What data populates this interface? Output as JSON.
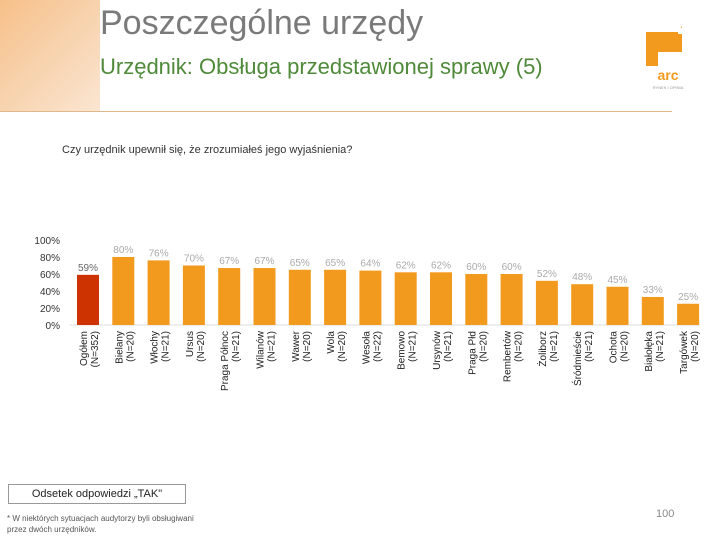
{
  "header": {
    "title": "Poszczególne urzędy",
    "subtitle": "Urzędnik: Obsługa przedstawionej sprawy (5)"
  },
  "logo": {
    "text": "arc",
    "tagline": "RYNEK I OPINIA"
  },
  "question": "Czy urzędnik upewnił się, że zrozumiałeś jego  wyjaśnienia?",
  "legend": "Odsetek odpowiedzi „TAK\"",
  "footnote": "* W niektórych sytuacjach audytorzy byli obsługiwani przez dwóch urzędników.",
  "page_number": "100",
  "colors": {
    "bar": "#f29a1d",
    "highlight": "#cc3300",
    "label": "#aaaaaa",
    "subtitle": "#4f8a3a"
  },
  "chart_data": {
    "type": "bar",
    "categories": [
      {
        "name": "Ogółem",
        "n": "(N=352)"
      },
      {
        "name": "Bielany",
        "n": "(N=20)"
      },
      {
        "name": "Włochy",
        "n": "(N=21)"
      },
      {
        "name": "Ursus",
        "n": "(N=20)"
      },
      {
        "name": "Praga Północ",
        "n": "(N=21)"
      },
      {
        "name": "Wilanów",
        "n": "(N=21)"
      },
      {
        "name": "Wawer",
        "n": "(N=20)"
      },
      {
        "name": "Wola",
        "n": "(N=20)"
      },
      {
        "name": "Wesoła",
        "n": "(N=22)"
      },
      {
        "name": "Bemowo",
        "n": "(N=21)"
      },
      {
        "name": "Ursynów",
        "n": "(N=21)"
      },
      {
        "name": "Praga Płd",
        "n": "(N=20)"
      },
      {
        "name": "Rembertów",
        "n": "(N=20)"
      },
      {
        "name": "Żoliborz",
        "n": "(N=21)"
      },
      {
        "name": "Śródmieście",
        "n": "(N=21)"
      },
      {
        "name": "Ochota",
        "n": "(N=20)"
      },
      {
        "name": "Białołęka",
        "n": "(N=21)"
      },
      {
        "name": "Targówek",
        "n": "(N=20)"
      }
    ],
    "values": [
      59,
      80,
      76,
      70,
      67,
      67,
      65,
      65,
      64,
      62,
      62,
      60,
      60,
      52,
      48,
      45,
      33,
      25
    ],
    "value_labels": [
      "59%",
      "80%",
      "76%",
      "70%",
      "67%",
      "67%",
      "65%",
      "65%",
      "64%",
      "62%",
      "62%",
      "60%",
      "60%",
      "52%",
      "48%",
      "45%",
      "33%",
      "25%"
    ],
    "highlight_index": 0,
    "yticks": [
      "0%",
      "20%",
      "40%",
      "60%",
      "80%",
      "100%"
    ],
    "ylim": [
      0,
      100
    ],
    "grid": false
  }
}
